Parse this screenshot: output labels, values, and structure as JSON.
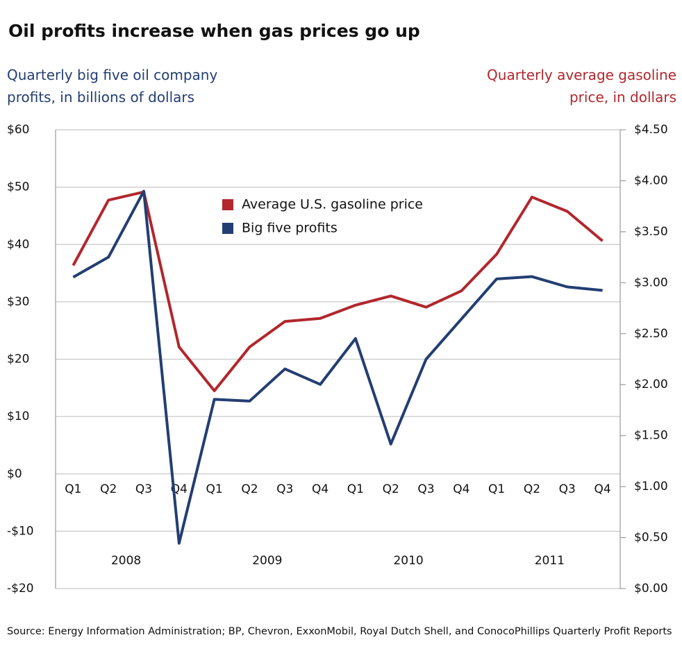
{
  "chart_data": {
    "type": "line",
    "title": "Oil profits increase when gas prices go up",
    "y_label": "Quarterly big five oil company profits, in billions of dollars",
    "y2_label": "Quarterly average gasoline price, in dollars",
    "source": "Source: Energy Information Administration; BP, Chevron, ExxonMobil, Royal Dutch Shell, and ConocoPhillips Quarterly Profit Reports",
    "categories": [
      "Q1",
      "Q2",
      "Q3",
      "Q4",
      "Q1",
      "Q2",
      "Q3",
      "Q4",
      "Q1",
      "Q2",
      "Q3",
      "Q4",
      "Q1",
      "Q2",
      "Q3",
      "Q4"
    ],
    "year_labels": [
      "2008",
      "2009",
      "2010",
      "2011"
    ],
    "series": [
      {
        "name": "Average U.S. gasoline price",
        "color": "#b1272d",
        "axis": "y2",
        "values": [
          3.17,
          3.81,
          3.89,
          2.37,
          1.94,
          2.37,
          2.62,
          2.65,
          2.78,
          2.87,
          2.76,
          2.92,
          3.28,
          3.84,
          3.7,
          3.41
        ]
      },
      {
        "name": "Big five profits",
        "color": "#233e72",
        "axis": "y",
        "values": [
          34.3,
          37.8,
          49.3,
          -12.1,
          13.0,
          12.7,
          18.3,
          15.6,
          23.6,
          5.2,
          20.0,
          27.0,
          34.0,
          34.4,
          32.6,
          32.0
        ]
      }
    ],
    "ylim": [
      -20,
      60
    ],
    "yticks": [
      {
        "value": -20,
        "label": "-$20"
      },
      {
        "value": -10,
        "label": "-$10"
      },
      {
        "value": 0,
        "label": "$0"
      },
      {
        "value": 10,
        "label": "$10"
      },
      {
        "value": 20,
        "label": "$20"
      },
      {
        "value": 30,
        "label": "$30"
      },
      {
        "value": 40,
        "label": "$40"
      },
      {
        "value": 50,
        "label": "$50"
      },
      {
        "value": 60,
        "label": "$60"
      }
    ],
    "y2lim": [
      0,
      4.5
    ],
    "y2ticks": [
      {
        "value": 0,
        "label": "$0.00"
      },
      {
        "value": 0.5,
        "label": "$0.50"
      },
      {
        "value": 1,
        "label": "$1.00"
      },
      {
        "value": 1.5,
        "label": "$1.50"
      },
      {
        "value": 2,
        "label": "$2.00"
      },
      {
        "value": 2.5,
        "label": "$2.50"
      },
      {
        "value": 3,
        "label": "$3.00"
      },
      {
        "value": 3.5,
        "label": "$3.50"
      },
      {
        "value": 4,
        "label": "$4.00"
      },
      {
        "value": 4.5,
        "label": "$4.50"
      }
    ],
    "grid": true,
    "legend": "upper center"
  }
}
